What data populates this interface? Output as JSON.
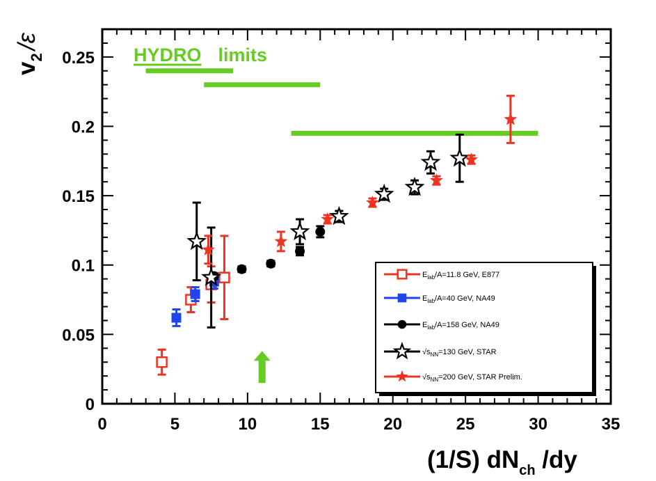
{
  "chart_data": {
    "type": "scatter",
    "xlabel": "(1/S) dN",
    "xlabel_sub": "ch",
    "xlabel_tail": " /dy",
    "ylabel_v": "v",
    "ylabel_sub": "2",
    "ylabel_tail": "/ε",
    "xlim": [
      0,
      35
    ],
    "ylim": [
      0,
      0.27
    ],
    "x_ticks": [
      "0",
      "5",
      "10",
      "15",
      "20",
      "25",
      "30",
      "35"
    ],
    "y_ticks": [
      "0",
      "0.05",
      "0.1",
      "0.15",
      "0.2",
      "0.25"
    ],
    "annotation": {
      "hydro_word": "HYDRO",
      "limits_word": "limits",
      "color": "#66cc22",
      "lines": [
        {
          "x": [
            3.0,
            9.0
          ],
          "y": 0.24
        },
        {
          "x": [
            7.0,
            15.0
          ],
          "y": 0.23
        },
        {
          "x": [
            13.0,
            30.0
          ],
          "y": 0.195
        }
      ],
      "arrow": {
        "x": 11.0,
        "y_from": 0.015,
        "y_to": 0.038
      }
    },
    "legend": {
      "position": "bottom-right",
      "entries": [
        {
          "label": "E",
          "sub": "lab",
          "tail": "/A=11.8 GeV, E877"
        },
        {
          "label": "E",
          "sub": "lab",
          "tail": "/A=40 GeV, NA49"
        },
        {
          "label": "E",
          "sub": "lab",
          "tail": "/A=158 GeV, NA49"
        },
        {
          "label": "√s",
          "sub": "NN",
          "tail": "=130 GeV, STAR"
        },
        {
          "label": "√s",
          "sub": "NN",
          "tail": "=200 GeV, STAR Prelim."
        }
      ]
    },
    "series": [
      {
        "name": "E_lab/A=11.8 GeV, E877",
        "marker": "open-square",
        "color": "#ee3322",
        "points": [
          {
            "x": 4.1,
            "y": 0.03,
            "err": 0.009
          },
          {
            "x": 6.1,
            "y": 0.075,
            "err": 0.009
          },
          {
            "x": 7.5,
            "y": 0.086,
            "err": 0.013
          },
          {
            "x": 8.4,
            "y": 0.091,
            "err": 0.03
          }
        ]
      },
      {
        "name": "E_lab/A=40 GeV, NA49",
        "marker": "filled-square",
        "color": "#2244ee",
        "points": [
          {
            "x": 5.1,
            "y": 0.062,
            "err": 0.006
          },
          {
            "x": 6.4,
            "y": 0.079,
            "err": 0.005
          },
          {
            "x": 7.7,
            "y": 0.088,
            "err": 0.005
          }
        ]
      },
      {
        "name": "E_lab/A=158 GeV, NA49",
        "marker": "filled-circle",
        "color": "#000000",
        "points": [
          {
            "x": 7.7,
            "y": 0.092,
            "err": 0.002
          },
          {
            "x": 9.6,
            "y": 0.097,
            "err": 0.002
          },
          {
            "x": 11.6,
            "y": 0.101,
            "err": 0.002
          },
          {
            "x": 13.6,
            "y": 0.11,
            "err": 0.003
          },
          {
            "x": 15.0,
            "y": 0.124,
            "err": 0.004
          }
        ]
      },
      {
        "name": "√s_NN=130 GeV, STAR",
        "marker": "open-star",
        "color": "#000000",
        "points": [
          {
            "x": 6.5,
            "y": 0.117,
            "err": 0.028
          },
          {
            "x": 7.5,
            "y": 0.091,
            "err": 0.036
          },
          {
            "x": 13.6,
            "y": 0.124,
            "err": 0.009
          },
          {
            "x": 16.3,
            "y": 0.135,
            "err": 0.004
          },
          {
            "x": 19.4,
            "y": 0.151,
            "err": 0.004
          },
          {
            "x": 21.5,
            "y": 0.156,
            "err": 0.005
          },
          {
            "x": 22.6,
            "y": 0.174,
            "err": 0.008
          },
          {
            "x": 24.6,
            "y": 0.177,
            "err": 0.017
          }
        ]
      },
      {
        "name": "√s_NN=200 GeV, STAR Prelim.",
        "marker": "filled-star",
        "color": "#ee3322",
        "points": [
          {
            "x": 7.3,
            "y": 0.111,
            "err": 0.01
          },
          {
            "x": 12.3,
            "y": 0.117,
            "err": 0.007
          },
          {
            "x": 15.5,
            "y": 0.133,
            "err": 0.003
          },
          {
            "x": 18.6,
            "y": 0.145,
            "err": 0.003
          },
          {
            "x": 23.0,
            "y": 0.161,
            "err": 0.003
          },
          {
            "x": 25.4,
            "y": 0.176,
            "err": 0.003
          },
          {
            "x": 28.1,
            "y": 0.205,
            "err": 0.017
          }
        ]
      }
    ]
  }
}
